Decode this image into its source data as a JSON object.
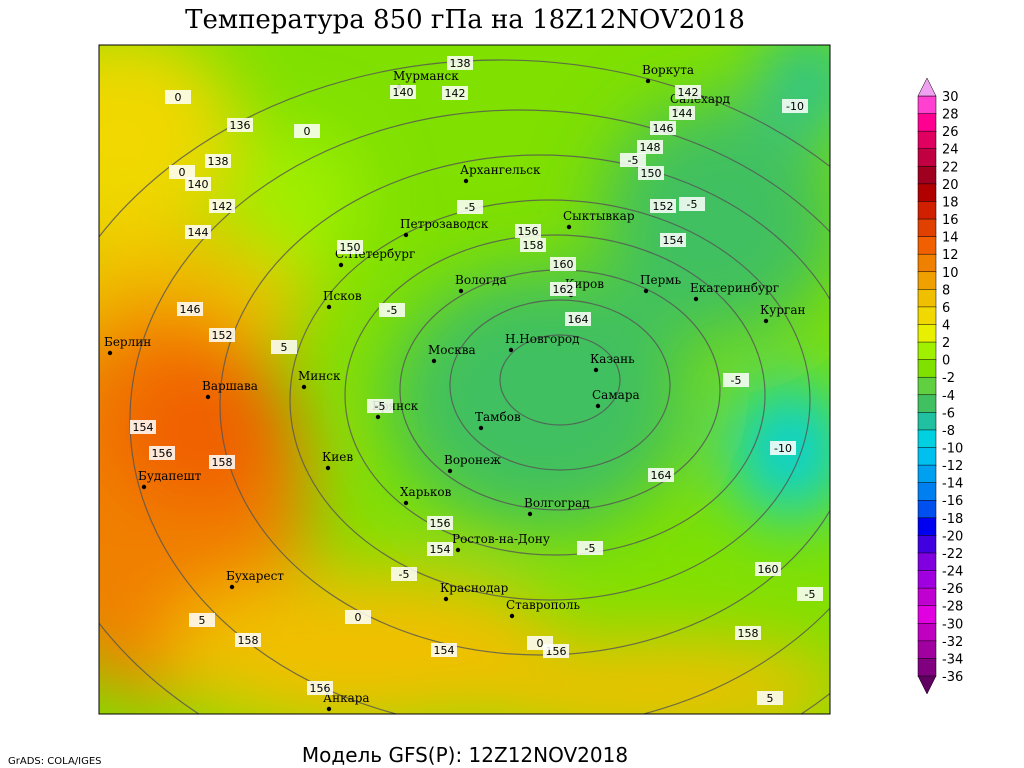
{
  "header": {
    "title": "Температура 850 гПа на 18Z12NOV2018"
  },
  "footer": {
    "model": "Модель GFS(P): 12Z12NOV2018",
    "credit": "GrADS: COLA/IGES"
  },
  "cities": [
    "Мурманск",
    "Воркута",
    "Салехард",
    "Архангельск",
    "Петрозаводск",
    "Сыктывкар",
    "С.Петербург",
    "Вологда",
    "Киров",
    "Пермь",
    "Екатеринбург",
    "Курган",
    "Псков",
    "Н.Новгород",
    "Москва",
    "Казань",
    "Берлин",
    "Варшава",
    "Минск",
    "Самара",
    "Брянск",
    "Тамбов",
    "Воронеж",
    "Киев",
    "Будапешт",
    "Харьков",
    "Волгоград",
    "Ростов-на-Дону",
    "Бухарест",
    "Краснодар",
    "Ставрополь",
    "Анкара"
  ],
  "contour_labels": [
    136,
    138,
    140,
    142,
    144,
    146,
    150,
    152,
    154,
    156,
    158,
    138,
    140,
    142,
    142,
    144,
    146,
    148,
    150,
    152,
    154,
    156,
    158,
    160,
    162,
    164,
    164,
    160,
    158,
    156,
    154,
    156,
    154,
    158,
    156,
    -10,
    -10,
    -5,
    -5,
    -5,
    -5,
    -5,
    -5,
    -5,
    -5,
    -5,
    0,
    0,
    0,
    0,
    0,
    5,
    5,
    5
  ],
  "colorbar": {
    "labels": [
      30,
      28,
      26,
      24,
      22,
      20,
      18,
      16,
      14,
      12,
      10,
      8,
      6,
      4,
      2,
      0,
      -2,
      -4,
      -6,
      -8,
      -10,
      -12,
      -14,
      -16,
      -18,
      -20,
      -22,
      -24,
      -26,
      -28,
      -30,
      -32,
      -34,
      -36
    ],
    "colors": [
      "#ff40d0",
      "#ff0090",
      "#e00060",
      "#c00040",
      "#a00020",
      "#b00000",
      "#d02000",
      "#e04000",
      "#f06000",
      "#f08000",
      "#f0a000",
      "#f0c000",
      "#f0d800",
      "#e8f000",
      "#a0f000",
      "#80e000",
      "#60d040",
      "#40c060",
      "#20c0a0",
      "#00d0e0",
      "#00c0f0",
      "#00a0f0",
      "#0080f0",
      "#0050f0",
      "#0000f0",
      "#4000e0",
      "#8000e0",
      "#a000e0",
      "#c000d0",
      "#e000e0",
      "#c000c0",
      "#a000a0",
      "#800080"
    ]
  }
}
